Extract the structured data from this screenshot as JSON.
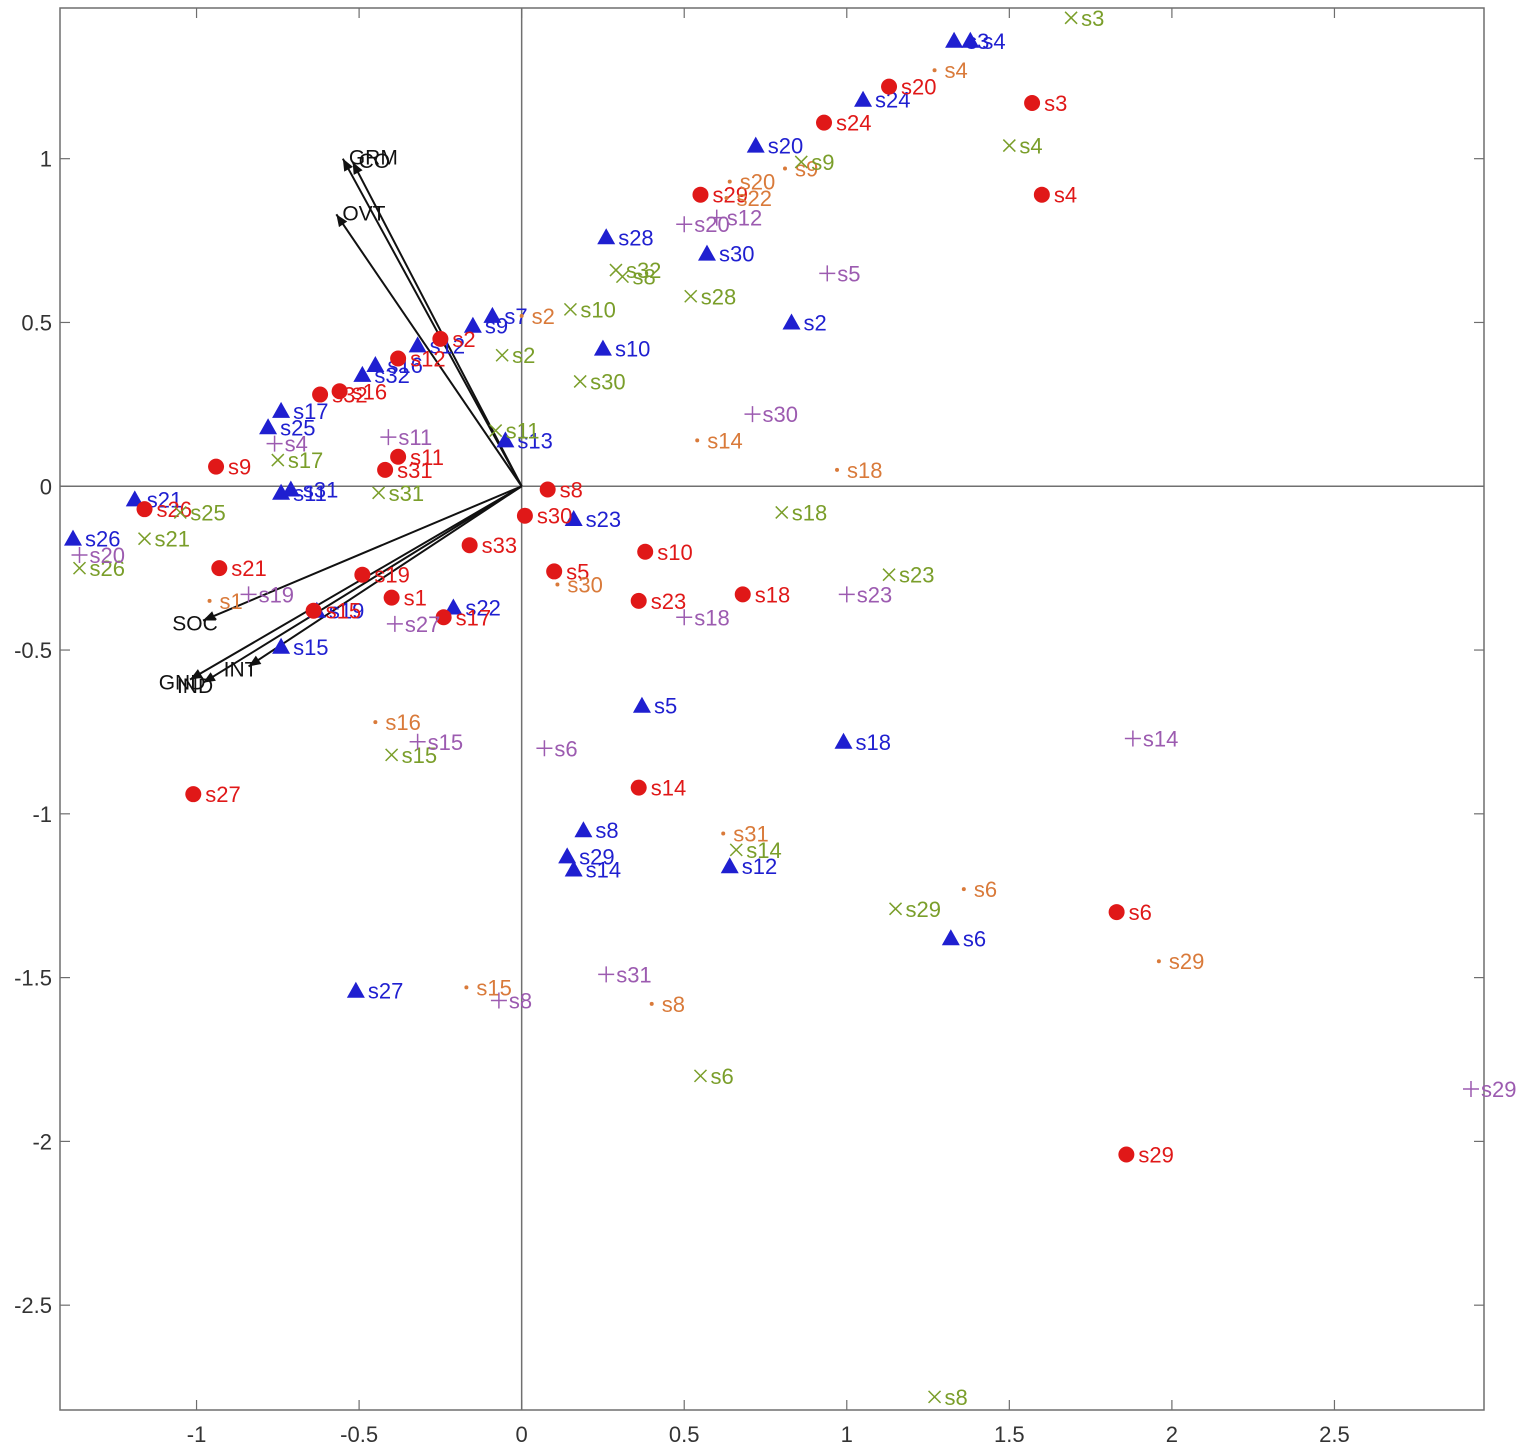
{
  "chart_data": {
    "type": "scatter",
    "title": "",
    "xlabel": "",
    "ylabel": "",
    "xlim": [
      -1.42,
      2.96
    ],
    "ylim": [
      -2.82,
      1.46
    ],
    "xticks": [
      -1,
      -0.5,
      0,
      0.5,
      1,
      1.5,
      2,
      2.5
    ],
    "yticks": [
      -2.5,
      -2,
      -1.5,
      -1,
      -0.5,
      0,
      0.5,
      1
    ],
    "xtick_labels": [
      "-1",
      "-0.5",
      "0",
      "0.5",
      "1",
      "1.5",
      "2",
      "2.5"
    ],
    "ytick_labels": [
      "-2.5",
      "-2",
      "-1.5",
      "-1",
      "-0.5",
      "0",
      "0.5",
      "1"
    ],
    "grid": false,
    "legend": "none",
    "zero_lines": true,
    "vectors": [
      {
        "label": "GRM",
        "x": -0.55,
        "y": 1.0
      },
      {
        "label": "CO",
        "x": -0.52,
        "y": 0.99
      },
      {
        "label": "OVT",
        "x": -0.57,
        "y": 0.83
      },
      {
        "label": "SOC",
        "x": -0.98,
        "y": -0.41
      },
      {
        "label": "GND",
        "x": -1.02,
        "y": -0.59
      },
      {
        "label": "IND",
        "x": -0.98,
        "y": -0.6
      },
      {
        "label": "INT",
        "x": -0.84,
        "y": -0.55
      }
    ],
    "series": [
      {
        "color": "#1f1fd0",
        "marker": "triangle",
        "points": [
          {
            "label": "s3",
            "x": 1.33,
            "y": 1.36
          },
          {
            "label": "s4",
            "x": 1.38,
            "y": 1.36
          },
          {
            "label": "s24",
            "x": 1.05,
            "y": 1.18
          },
          {
            "label": "s20",
            "x": 0.72,
            "y": 1.04
          },
          {
            "label": "s28",
            "x": 0.26,
            "y": 0.76
          },
          {
            "label": "s30",
            "x": 0.57,
            "y": 0.71
          },
          {
            "label": "s2",
            "x": 0.83,
            "y": 0.5
          },
          {
            "label": "s10",
            "x": 0.25,
            "y": 0.42
          },
          {
            "label": "s7",
            "x": -0.09,
            "y": 0.52
          },
          {
            "label": "s9",
            "x": -0.15,
            "y": 0.49
          },
          {
            "label": "s12",
            "x": -0.32,
            "y": 0.43
          },
          {
            "label": "s16",
            "x": -0.45,
            "y": 0.37
          },
          {
            "label": "s32",
            "x": -0.49,
            "y": 0.34
          },
          {
            "label": "s17",
            "x": -0.74,
            "y": 0.23
          },
          {
            "label": "s25",
            "x": -0.78,
            "y": 0.18
          },
          {
            "label": "s13",
            "x": -0.05,
            "y": 0.14
          },
          {
            "label": "s11",
            "x": -0.74,
            "y": -0.02
          },
          {
            "label": "s31",
            "x": -0.71,
            "y": -0.01
          },
          {
            "label": "s21",
            "x": -1.19,
            "y": -0.04
          },
          {
            "label": "s26",
            "x": -1.38,
            "y": -0.16
          },
          {
            "label": "s23",
            "x": 0.16,
            "y": -0.1
          },
          {
            "label": "s22",
            "x": -0.21,
            "y": -0.37
          },
          {
            "label": "s19",
            "x": -0.63,
            "y": -0.38
          },
          {
            "label": "s15",
            "x": -0.74,
            "y": -0.49
          },
          {
            "label": "s5",
            "x": 0.37,
            "y": -0.67
          },
          {
            "label": "s18",
            "x": 0.99,
            "y": -0.78
          },
          {
            "label": "s8",
            "x": 0.19,
            "y": -1.05
          },
          {
            "label": "s29",
            "x": 0.14,
            "y": -1.13
          },
          {
            "label": "s14",
            "x": 0.16,
            "y": -1.17
          },
          {
            "label": "s12",
            "x": 0.64,
            "y": -1.16
          },
          {
            "label": "s6",
            "x": 1.32,
            "y": -1.38
          },
          {
            "label": "s27",
            "x": -0.51,
            "y": -1.54
          }
        ]
      },
      {
        "color": "#e01818",
        "marker": "circle",
        "points": [
          {
            "label": "s20",
            "x": 1.13,
            "y": 1.22
          },
          {
            "label": "s3",
            "x": 1.57,
            "y": 1.17
          },
          {
            "label": "s24",
            "x": 0.93,
            "y": 1.11
          },
          {
            "label": "s4",
            "x": 1.6,
            "y": 0.89
          },
          {
            "label": "s29",
            "x": 0.55,
            "y": 0.89
          },
          {
            "label": "s2",
            "x": -0.25,
            "y": 0.45
          },
          {
            "label": "s12",
            "x": -0.38,
            "y": 0.39
          },
          {
            "label": "s16",
            "x": -0.56,
            "y": 0.29
          },
          {
            "label": "s32",
            "x": -0.62,
            "y": 0.28
          },
          {
            "label": "s11",
            "x": -0.38,
            "y": 0.09
          },
          {
            "label": "s31",
            "x": -0.42,
            "y": 0.05
          },
          {
            "label": "s9",
            "x": -0.94,
            "y": 0.06
          },
          {
            "label": "s8",
            "x": 0.08,
            "y": -0.01
          },
          {
            "label": "s26",
            "x": -1.16,
            "y": -0.07
          },
          {
            "label": "s30",
            "x": 0.01,
            "y": -0.09
          },
          {
            "label": "s33",
            "x": -0.16,
            "y": -0.18
          },
          {
            "label": "s10",
            "x": 0.38,
            "y": -0.2
          },
          {
            "label": "s21",
            "x": -0.93,
            "y": -0.25
          },
          {
            "label": "s5",
            "x": 0.1,
            "y": -0.26
          },
          {
            "label": "s19",
            "x": -0.49,
            "y": -0.27
          },
          {
            "label": "s1",
            "x": -0.4,
            "y": -0.34
          },
          {
            "label": "s23",
            "x": 0.36,
            "y": -0.35
          },
          {
            "label": "s18",
            "x": 0.68,
            "y": -0.33
          },
          {
            "label": "s15",
            "x": -0.64,
            "y": -0.38
          },
          {
            "label": "s17",
            "x": -0.24,
            "y": -0.4
          },
          {
            "label": "s14",
            "x": 0.36,
            "y": -0.92
          },
          {
            "label": "s27",
            "x": -1.01,
            "y": -0.94
          },
          {
            "label": "s6",
            "x": 1.83,
            "y": -1.3
          },
          {
            "label": "s29",
            "x": 1.86,
            "y": -2.04
          }
        ]
      },
      {
        "color": "#d97a3a",
        "marker": "dot",
        "points": [
          {
            "label": "s4",
            "x": 1.27,
            "y": 1.27
          },
          {
            "label": "s20",
            "x": 0.64,
            "y": 0.93
          },
          {
            "label": "s22",
            "x": 0.63,
            "y": 0.88
          },
          {
            "label": "s9",
            "x": 0.81,
            "y": 0.97
          },
          {
            "label": "s2",
            "x": 0.0,
            "y": 0.52
          },
          {
            "label": "s14",
            "x": 0.54,
            "y": 0.14
          },
          {
            "label": "s18",
            "x": 0.97,
            "y": 0.05
          },
          {
            "label": "s30",
            "x": 0.11,
            "y": -0.3
          },
          {
            "label": "s1",
            "x": -0.96,
            "y": -0.35
          },
          {
            "label": "s16",
            "x": -0.45,
            "y": -0.72
          },
          {
            "label": "s31",
            "x": 0.62,
            "y": -1.06
          },
          {
            "label": "s6",
            "x": 1.36,
            "y": -1.23
          },
          {
            "label": "s29",
            "x": 1.96,
            "y": -1.45
          },
          {
            "label": "s15",
            "x": -0.17,
            "y": -1.53
          },
          {
            "label": "s8",
            "x": 0.4,
            "y": -1.58
          }
        ]
      },
      {
        "color": "#7a9e2a",
        "marker": "x",
        "points": [
          {
            "label": "s3",
            "x": 1.69,
            "y": 1.43
          },
          {
            "label": "s4",
            "x": 1.5,
            "y": 1.04
          },
          {
            "label": "s9",
            "x": 0.86,
            "y": 0.99
          },
          {
            "label": "s32",
            "x": 0.29,
            "y": 0.66
          },
          {
            "label": "s8",
            "x": 0.31,
            "y": 0.64
          },
          {
            "label": "s28",
            "x": 0.52,
            "y": 0.58
          },
          {
            "label": "s10",
            "x": 0.15,
            "y": 0.54
          },
          {
            "label": "s2",
            "x": -0.06,
            "y": 0.4
          },
          {
            "label": "s30",
            "x": 0.18,
            "y": 0.32
          },
          {
            "label": "s11",
            "x": -0.08,
            "y": 0.17
          },
          {
            "label": "s17",
            "x": -0.75,
            "y": 0.08
          },
          {
            "label": "s31",
            "x": -0.44,
            "y": -0.02
          },
          {
            "label": "s25",
            "x": -1.05,
            "y": -0.08
          },
          {
            "label": "s21",
            "x": -1.16,
            "y": -0.16
          },
          {
            "label": "s26",
            "x": -1.36,
            "y": -0.25
          },
          {
            "label": "s18",
            "x": 0.8,
            "y": -0.08
          },
          {
            "label": "s23",
            "x": 1.13,
            "y": -0.27
          },
          {
            "label": "s15",
            "x": -0.4,
            "y": -0.82
          },
          {
            "label": "s14",
            "x": 0.66,
            "y": -1.11
          },
          {
            "label": "s29",
            "x": 1.15,
            "y": -1.29
          },
          {
            "label": "s6",
            "x": 0.55,
            "y": -1.8
          },
          {
            "label": "s8",
            "x": 1.27,
            "y": -2.78
          }
        ]
      },
      {
        "color": "#9c5bb0",
        "marker": "plus",
        "points": [
          {
            "label": "s12",
            "x": 0.6,
            "y": 0.82
          },
          {
            "label": "s20",
            "x": 0.5,
            "y": 0.8
          },
          {
            "label": "s5",
            "x": 0.94,
            "y": 0.65
          },
          {
            "label": "s30",
            "x": 0.71,
            "y": 0.22
          },
          {
            "label": "s11",
            "x": -0.41,
            "y": 0.15
          },
          {
            "label": "s4",
            "x": -0.76,
            "y": 0.13
          },
          {
            "label": "s20",
            "x": -1.36,
            "y": -0.21
          },
          {
            "label": "s19",
            "x": -0.84,
            "y": -0.33
          },
          {
            "label": "s27",
            "x": -0.39,
            "y": -0.42
          },
          {
            "label": "s18",
            "x": 0.5,
            "y": -0.4
          },
          {
            "label": "s23",
            "x": 1.0,
            "y": -0.33
          },
          {
            "label": "s15",
            "x": -0.32,
            "y": -0.78
          },
          {
            "label": "s6",
            "x": 0.07,
            "y": -0.8
          },
          {
            "label": "s14",
            "x": 1.88,
            "y": -0.77
          },
          {
            "label": "s31",
            "x": 0.26,
            "y": -1.49
          },
          {
            "label": "s8",
            "x": -0.07,
            "y": -1.57
          },
          {
            "label": "s29",
            "x": 2.92,
            "y": -1.84
          }
        ]
      }
    ]
  }
}
